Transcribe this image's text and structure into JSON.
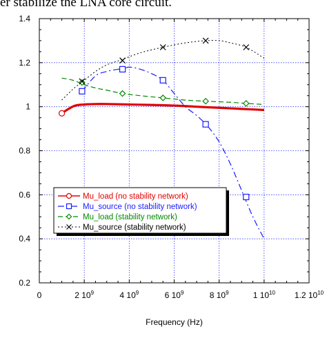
{
  "caption_text": "er stabilize the LNA core circuit.",
  "chart_data": {
    "type": "line",
    "title": "",
    "xlabel": "Frequency (Hz)",
    "ylabel": "",
    "xlim": [
      0,
      12000000000
    ],
    "ylim": [
      0.2,
      1.4
    ],
    "grid": true,
    "legend_position": "lower-left",
    "x_ticks": [
      0,
      2000000000,
      4000000000,
      6000000000,
      8000000000,
      10000000000,
      12000000000
    ],
    "x_tick_labels": [
      {
        "mant": "0",
        "exp": ""
      },
      {
        "mant": "2 10",
        "exp": "9"
      },
      {
        "mant": "4 10",
        "exp": "9"
      },
      {
        "mant": "6 10",
        "exp": "9"
      },
      {
        "mant": "8 10",
        "exp": "9"
      },
      {
        "mant": "1 10",
        "exp": "10"
      },
      {
        "mant": "1.2 10",
        "exp": "10"
      }
    ],
    "y_ticks": [
      0.2,
      0.4,
      0.6,
      0.8,
      1,
      1.2,
      1.4
    ],
    "y_tick_labels": [
      "0.2",
      "0.4",
      "0.6",
      "0.8",
      "1",
      "1.2",
      "1.4"
    ],
    "series": [
      {
        "name": "Mu_load (no stability network)",
        "color": "#e00000",
        "dash": "",
        "width": 3.2,
        "marker": "circle",
        "x": [
          1000000000,
          1300000000,
          1600000000,
          2000000000,
          2500000000,
          3000000000,
          4000000000,
          5000000000,
          6000000000,
          7000000000,
          8000000000,
          9000000000,
          10000000000
        ],
        "y": [
          0.97,
          0.99,
          1.005,
          1.01,
          1.012,
          1.012,
          1.01,
          1.008,
          1.005,
          1.0,
          0.995,
          0.99,
          0.985
        ],
        "markers": [
          [
            1000000000,
            0.97
          ]
        ]
      },
      {
        "name": "Mu_source (no stability network)",
        "color": "#1a1aff",
        "dash": "9,4,2,4",
        "width": 1.2,
        "marker": "square",
        "x": [
          1900000000,
          2500000000,
          3000000000,
          3500000000,
          3700000000,
          4000000000,
          4500000000,
          5000000000,
          5500000000,
          6000000000,
          6500000000,
          7000000000,
          7500000000,
          8000000000,
          8500000000,
          9000000000,
          9500000000,
          10000000000
        ],
        "y": [
          1.07,
          1.14,
          1.16,
          1.17,
          1.17,
          1.18,
          1.17,
          1.15,
          1.12,
          1.06,
          1.0,
          0.96,
          0.91,
          0.84,
          0.74,
          0.62,
          0.5,
          0.4
        ],
        "markers": [
          [
            1900000000,
            1.07
          ],
          [
            3700000000,
            1.17
          ],
          [
            5500000000,
            1.12
          ],
          [
            7400000000,
            0.92
          ],
          [
            9200000000,
            0.59
          ]
        ]
      },
      {
        "name": "Mu_load (stability network)",
        "color": "#008800",
        "dash": "7,4",
        "width": 1.2,
        "marker": "diamond",
        "x": [
          1000000000,
          1500000000,
          2000000000,
          2500000000,
          3000000000,
          3700000000,
          4500000000,
          5500000000,
          6500000000,
          7400000000,
          8500000000,
          9200000000,
          10000000000
        ],
        "y": [
          1.13,
          1.12,
          1.1,
          1.085,
          1.075,
          1.06,
          1.05,
          1.04,
          1.03,
          1.025,
          1.02,
          1.015,
          1.01
        ],
        "markers": [
          [
            1900000000,
            1.11
          ],
          [
            3700000000,
            1.06
          ],
          [
            5500000000,
            1.04
          ],
          [
            7400000000,
            1.025
          ],
          [
            9200000000,
            1.015
          ]
        ]
      },
      {
        "name": "Mu_source (stability network)",
        "color": "#000000",
        "dash": "2,3",
        "width": 1.0,
        "marker": "x",
        "x": [
          1000000000,
          1500000000,
          2000000000,
          2500000000,
          3000000000,
          3700000000,
          4500000000,
          5500000000,
          6500000000,
          7400000000,
          8000000000,
          8500000000,
          9200000000,
          10000000000
        ],
        "y": [
          1.03,
          1.08,
          1.12,
          1.16,
          1.19,
          1.215,
          1.245,
          1.27,
          1.29,
          1.3,
          1.3,
          1.29,
          1.27,
          1.22
        ],
        "markers": [
          [
            1900000000,
            1.115
          ],
          [
            3700000000,
            1.21
          ],
          [
            5500000000,
            1.27
          ],
          [
            7400000000,
            1.3
          ],
          [
            9200000000,
            1.27
          ]
        ]
      }
    ]
  }
}
